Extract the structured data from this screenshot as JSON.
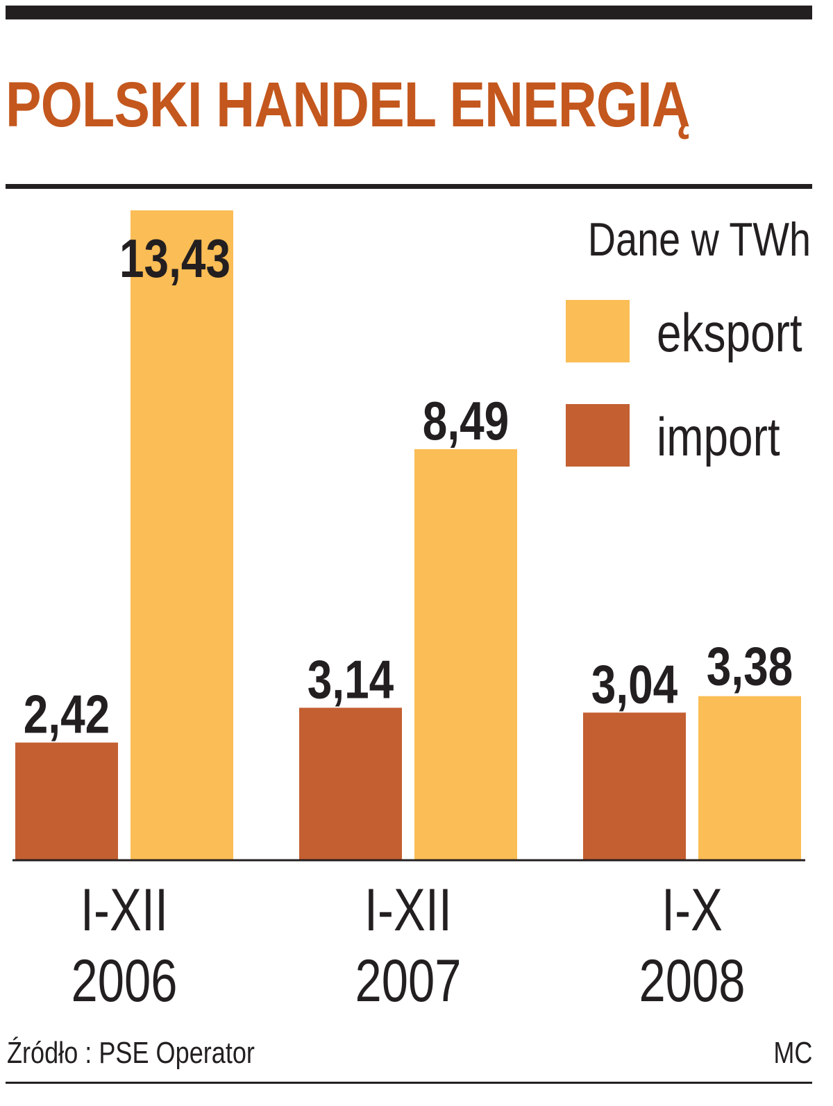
{
  "title": "POLSKI HANDEL ENERGIĄ",
  "source": "Źródło : PSE Operator",
  "credit": "MC",
  "colors": {
    "title": "#c4571d",
    "eksport": "#fbbd55",
    "import": "#c35f31",
    "text": "#231f20"
  },
  "chart_data": {
    "type": "bar",
    "unit_note": "Dane w TWh",
    "categories": [
      [
        "I-XII",
        "2006"
      ],
      [
        "I-XII",
        "2007"
      ],
      [
        "I-X",
        "2008"
      ]
    ],
    "series": [
      {
        "name": "import",
        "values": [
          2.42,
          3.14,
          3.04
        ],
        "labels": [
          "2,42",
          "3,14",
          "3,04"
        ]
      },
      {
        "name": "eksport",
        "values": [
          13.43,
          8.49,
          3.38
        ],
        "labels": [
          "13,43",
          "8,49",
          "3,38"
        ]
      }
    ],
    "ylim": [
      0,
      13.43
    ],
    "grid": false,
    "legend": "top-right"
  }
}
